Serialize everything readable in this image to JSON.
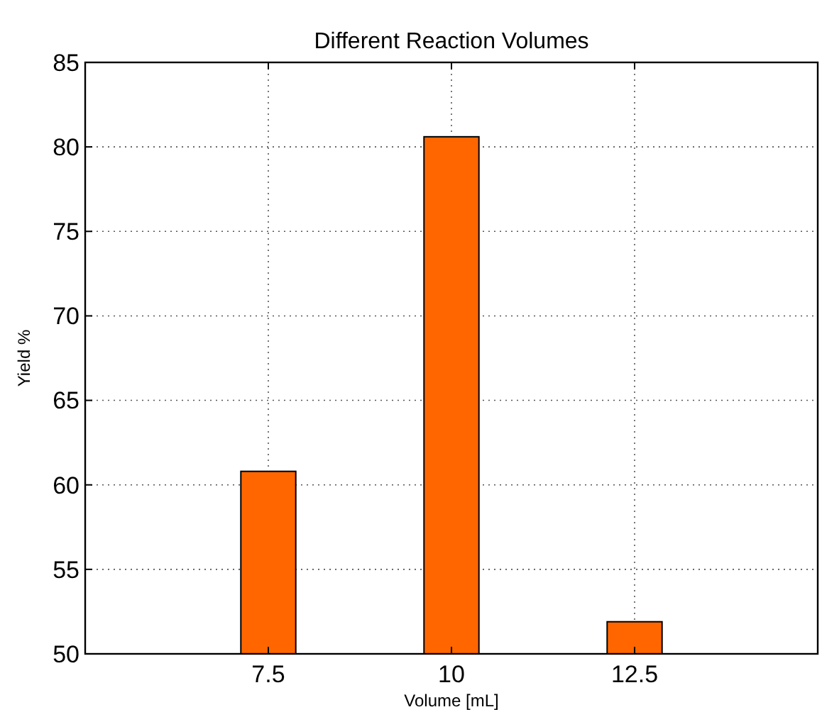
{
  "chart_data": {
    "type": "bar",
    "title": "Different Reaction Volumes",
    "xlabel": "Volume [mL]",
    "ylabel": "Yield %",
    "x": [
      7.5,
      10,
      12.5
    ],
    "values": [
      60.8,
      80.6,
      51.9
    ],
    "color": "#ff6600",
    "xlim": [
      5,
      15
    ],
    "xticks": [
      7.5,
      10,
      12.5
    ],
    "ylim": [
      50,
      85
    ],
    "yticks": [
      50,
      55,
      60,
      65,
      70,
      75,
      80,
      85
    ],
    "grid": true
  }
}
